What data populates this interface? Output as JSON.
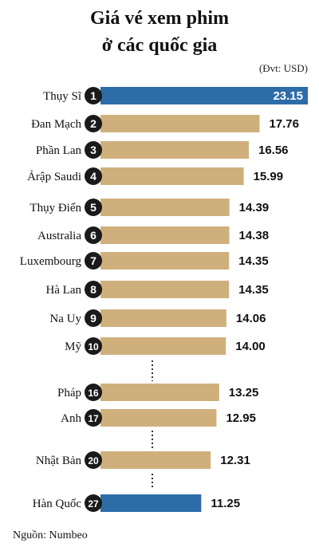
{
  "header": {
    "title_line1": "Giá vé xem phim",
    "title_line2": "ở các quốc gia",
    "unit": "(Đvt: USD)"
  },
  "footer": {
    "source": "Nguồn: Numbeo"
  },
  "colors": {
    "bar_default": "#cfb07d",
    "bar_highlight": "#2e6ca8",
    "rank_circle": "#1a1a1a",
    "dots": "#333333"
  },
  "chart_data": {
    "type": "bar",
    "orientation": "horizontal",
    "title": "Giá vé xem phim ở các quốc gia",
    "unit": "USD",
    "xlim": [
      0,
      23.15
    ],
    "grid": false,
    "rows": [
      {
        "rank": "1",
        "label": "Thụy Sĩ",
        "value": 23.15,
        "value_label": "23.15",
        "highlight": true
      },
      {
        "rank": "2",
        "label": "Đan Mạch",
        "value": 17.76,
        "value_label": "17.76",
        "highlight": false
      },
      {
        "rank": "3",
        "label": "Phần Lan",
        "value": 16.56,
        "value_label": "16.56",
        "highlight": false
      },
      {
        "rank": "4",
        "label": "Ảrập Saudi",
        "value": 15.99,
        "value_label": "15.99",
        "highlight": false
      },
      {
        "rank": "5",
        "label": "Thụy Điển",
        "value": 14.39,
        "value_label": "14.39",
        "highlight": false
      },
      {
        "rank": "6",
        "label": "Australia",
        "value": 14.38,
        "value_label": "14.38",
        "highlight": false
      },
      {
        "rank": "7",
        "label": "Luxembourg",
        "value": 14.35,
        "value_label": "14.35",
        "highlight": false
      },
      {
        "rank": "8",
        "label": "Hà Lan",
        "value": 14.35,
        "value_label": "14.35",
        "highlight": false
      },
      {
        "rank": "9",
        "label": "Na Uy",
        "value": 14.06,
        "value_label": "14.06",
        "highlight": false
      },
      {
        "rank": "10",
        "label": "Mỹ",
        "value": 14.0,
        "value_label": "14.00",
        "highlight": false
      },
      {
        "rank": "16",
        "label": "Pháp",
        "value": 13.25,
        "value_label": "13.25",
        "highlight": false
      },
      {
        "rank": "17",
        "label": "Anh",
        "value": 12.95,
        "value_label": "12.95",
        "highlight": false
      },
      {
        "rank": "20",
        "label": "Nhật Bản",
        "value": 12.31,
        "value_label": "12.31",
        "highlight": false
      },
      {
        "rank": "27",
        "label": "Hàn Quốc",
        "value": 11.25,
        "value_label": "11.25",
        "highlight": false,
        "highlight_alt": true
      }
    ]
  }
}
